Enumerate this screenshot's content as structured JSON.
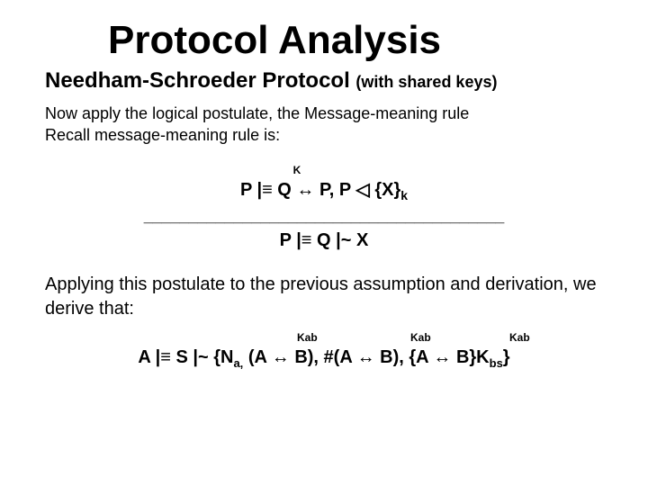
{
  "colors": {
    "background": "#ffffff",
    "text": "#000000"
  },
  "typography": {
    "title_fontsize": 44,
    "subtitle_fontsize": 24,
    "subtitle_paren_fontsize": 18,
    "body_fontsize": 18,
    "body2_fontsize": 20,
    "rule_fontsize": 20,
    "superscript_fontsize": 12,
    "subscript_fontsize": 13,
    "font_family": "Arial"
  },
  "title": "Protocol Analysis",
  "subtitle_main": "Needham-Schroeder Protocol ",
  "subtitle_paren": "(with shared keys)",
  "body_line1": "Now apply the logical postulate, the Message-meaning rule",
  "body_line2": "Recall message-meaning rule is:",
  "rule": {
    "superscript": "K",
    "premise": "P |≡ Q ↔ P, P ◁ {X}",
    "premise_sub": "k",
    "divider": "________________________________________",
    "conclusion": "P |≡ Q |~ X"
  },
  "body_line3": "Applying this postulate to the previous assumption and derivation, we derive that:",
  "derivation": {
    "kab_label": "Kab",
    "line_part1": "A |≡ S |~ {N",
    "line_sub1": "a,",
    "line_part2": " (A ↔ B), #(A ↔ B), {A ↔ B}K",
    "line_sub2": "bs",
    "line_part3": "}"
  }
}
